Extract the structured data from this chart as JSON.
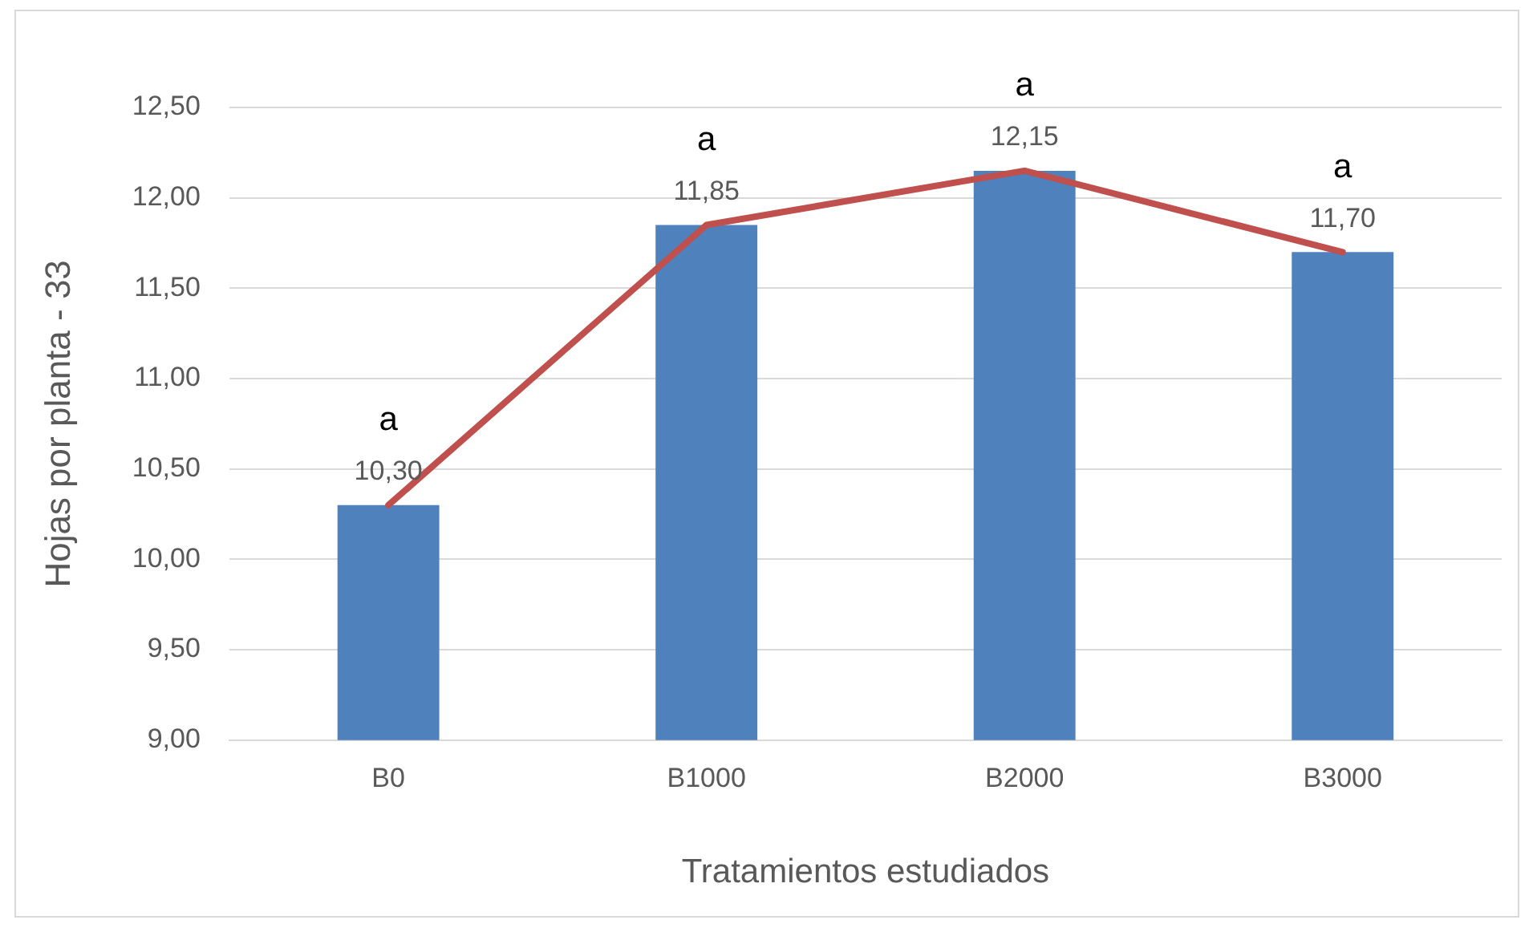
{
  "chart_data": {
    "type": "bar",
    "xlabel": "Tratamientos estudiados",
    "ylabel": "Hojas por planta - 33",
    "categories": [
      "B0",
      "B1000",
      "B2000",
      "B3000"
    ],
    "series": [
      {
        "color": "#4f81bd",
        "values": [
          10.3,
          11.85,
          12.15,
          11.7
        ],
        "value_labels": [
          "10,30",
          "11,85",
          "12,15",
          "11,70"
        ]
      },
      {
        "type": "line",
        "color": "#c0504d",
        "values": [
          10.3,
          11.85,
          12.15,
          11.7
        ],
        "marker": "none"
      }
    ],
    "ylim": [
      9,
      12.5
    ],
    "yticks": [
      {
        "value": 9,
        "label": "9,00"
      },
      {
        "value": 9.5,
        "label": "9,50"
      },
      {
        "value": 10,
        "label": "10,00"
      },
      {
        "value": 10.5,
        "label": "10,50"
      },
      {
        "value": 11,
        "label": "11,00"
      },
      {
        "value": 11.5,
        "label": "11,50"
      },
      {
        "value": 12,
        "label": "12,00"
      },
      {
        "value": 12.5,
        "label": "12,50"
      }
    ],
    "grid": "y",
    "legend": false,
    "annotations": [
      "a",
      "a",
      "a",
      "a"
    ]
  }
}
